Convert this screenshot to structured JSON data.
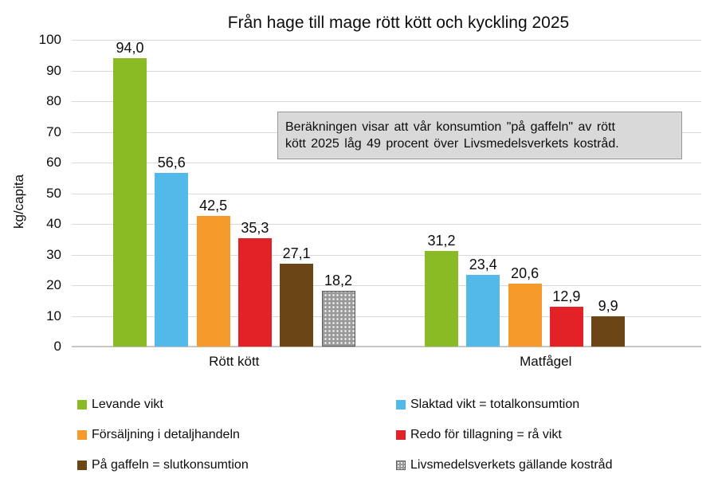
{
  "chart_data": {
    "type": "bar",
    "title": "Från hage till mage rött kött och kyckling 2025",
    "ylabel": "kg/capita",
    "ylim": [
      0,
      100
    ],
    "ytick_step": 10,
    "grid": true,
    "legend_position": "bottom",
    "categories": [
      "Rött kött",
      "Matfågel"
    ],
    "series": [
      {
        "name": "Levande vikt",
        "color": "#8abb25",
        "pattern": "solid",
        "values": [
          94.0,
          31.2
        ],
        "labels": [
          "94,0",
          "31,2"
        ]
      },
      {
        "name": "Slaktad vikt = totalkonsumtion",
        "color": "#52b9e9",
        "pattern": "solid",
        "values": [
          56.6,
          23.4
        ],
        "labels": [
          "56,6",
          "23,4"
        ]
      },
      {
        "name": "Försäljning i detaljhandeln",
        "color": "#f59a2b",
        "pattern": "solid",
        "values": [
          42.5,
          20.6
        ],
        "labels": [
          "42,5",
          "20,6"
        ]
      },
      {
        "name": "Redo för tillagning = rå vikt",
        "color": "#e32227",
        "pattern": "solid",
        "values": [
          35.3,
          12.9
        ],
        "labels": [
          "35,3",
          "12,9"
        ]
      },
      {
        "name": "På gaffeln = slutkonsumtion",
        "color": "#6c4516",
        "pattern": "solid",
        "values": [
          27.1,
          9.9
        ],
        "labels": [
          "27,1",
          "9,9"
        ]
      },
      {
        "name": "Livsmedelsverkets gällande kostråd",
        "color": "#9a9a9a",
        "pattern": "dots",
        "values": [
          18.2,
          null
        ],
        "labels": [
          "18,2",
          null
        ]
      }
    ]
  },
  "annotation": {
    "lines": [
      "Beräkningen visar att vår konsumtion \"på gaffeln\" av rött",
      "kött 2025 låg 49 procent över Livsmedelsverkets kostråd."
    ]
  }
}
